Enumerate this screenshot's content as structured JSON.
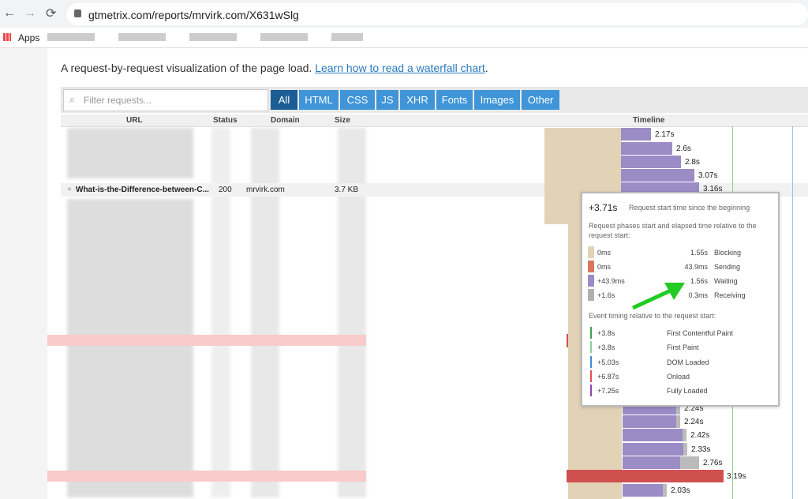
{
  "browser": {
    "url": "gtmetrix.com/reports/mrvirk.com/X631wSlg",
    "bookmarks_apps": "Apps"
  },
  "intro": {
    "text": "A request-by-request visualization of the page load.",
    "link": "Learn how to read a waterfall chart",
    "end": "."
  },
  "filter": {
    "placeholder": "Filter requests...",
    "tabs": [
      "All",
      "HTML",
      "CSS",
      "JS",
      "XHR",
      "Fonts",
      "Images",
      "Other"
    ]
  },
  "table": {
    "headers": [
      "URL",
      "Status",
      "Domain",
      "Size",
      "Timeline"
    ],
    "row": [
      "What-is-the-Difference-between-C...",
      "200",
      "mrvirk.com",
      "3.7 KB"
    ],
    "top_timings": [
      "2.17s",
      "2.6s",
      "2.8s",
      "3.07s",
      "3.16s"
    ],
    "bottom_timings": [
      "2.24s",
      "2.24s",
      "2.42s",
      "2.33s",
      "2.76s",
      "3.19s",
      "2.03s"
    ]
  },
  "tooltip": {
    "start": "+3.71s",
    "start_label": "Request start time since the beginning",
    "phases_title": "Request phases start and elapsed time relative to the request start:",
    "phases": [
      [
        "0ms",
        "1.55s",
        "Blocking"
      ],
      [
        "0ms",
        "43.9ms",
        "Sending"
      ],
      [
        "+43.9ms",
        "1.56s",
        "Waiting"
      ],
      [
        "+1.6s",
        "0.3ms",
        "Receiving"
      ]
    ],
    "events_title": "Event timing relative to the request start:",
    "events": [
      [
        "+3.8s",
        "First Contentful Paint"
      ],
      [
        "+3.8s",
        "First Paint"
      ],
      [
        "+5.03s",
        "DOM Loaded"
      ],
      [
        "+6.87s",
        "Onload"
      ],
      [
        "+7.25s",
        "Fully Loaded"
      ]
    ]
  }
}
